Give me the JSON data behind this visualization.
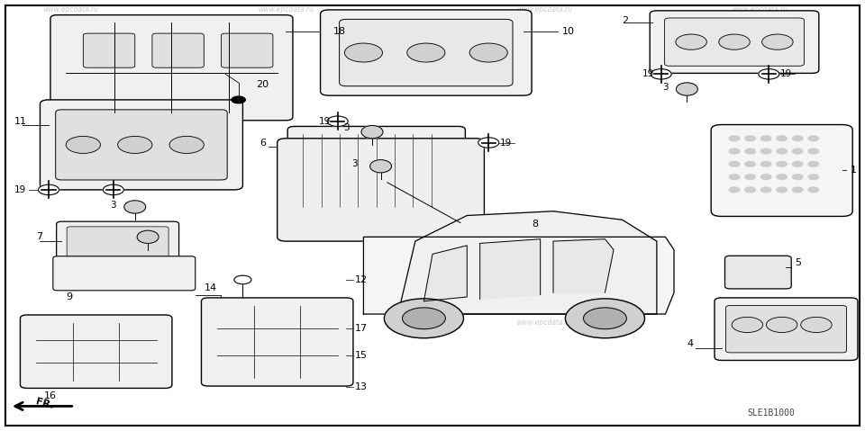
{
  "background_color": "#ffffff",
  "watermarks": [
    "www.epcdata.ru",
    "www.epcdata.ru",
    "www.epcdata.ru",
    "www.epc"
  ],
  "diagram_code": "SLE1B1000",
  "arrow_label": "FR.",
  "title_font": 9,
  "line_color": "#000000",
  "part_color": "#111111",
  "bg": "#f8f8f8"
}
